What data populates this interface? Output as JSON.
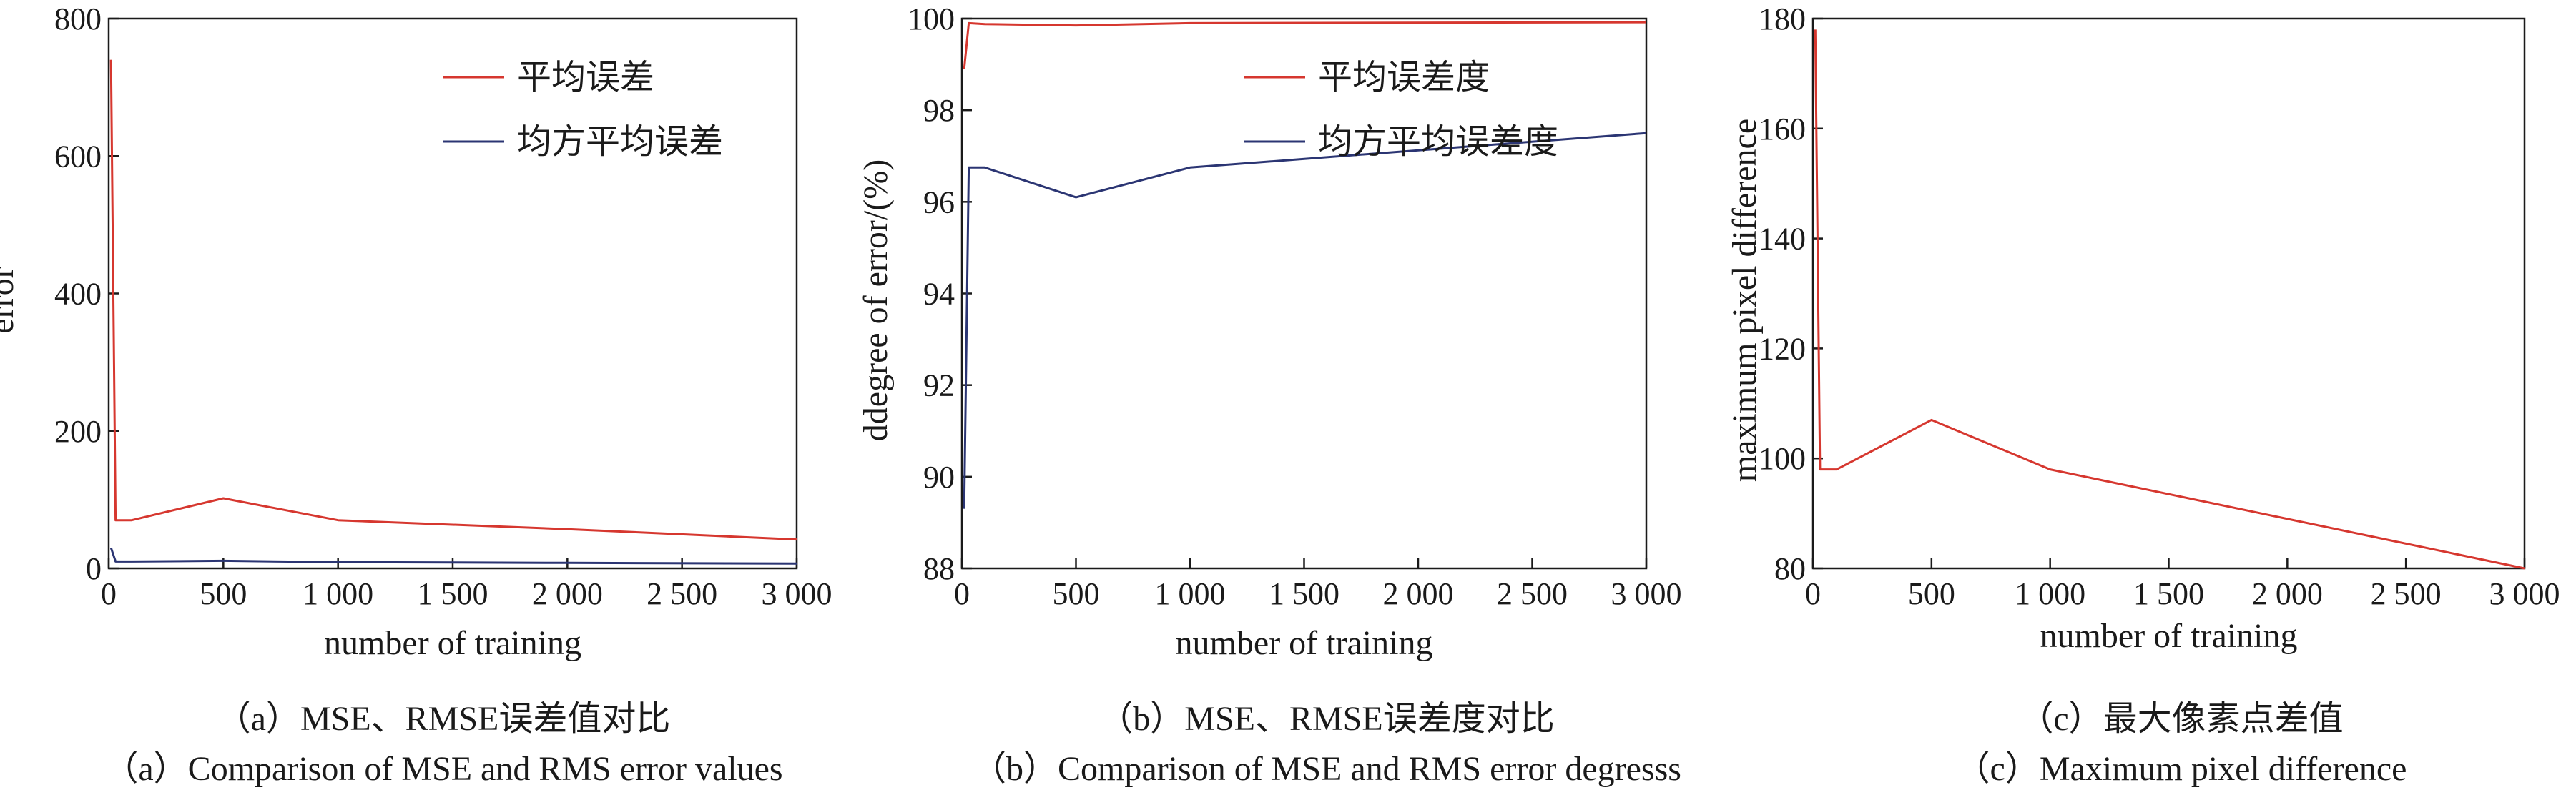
{
  "colors": {
    "red": "#d6372f",
    "blue": "#2b3573"
  },
  "charts": [
    {
      "type": "line",
      "xlabel": "number of training",
      "ylabel": "error",
      "xlim": [
        0,
        3000
      ],
      "ylim": [
        0,
        800
      ],
      "xticks": [
        "0",
        "500",
        "1 000",
        "1 500",
        "2 000",
        "2 500",
        "3 000"
      ],
      "xtick_values": [
        0,
        500,
        1000,
        1500,
        2000,
        2500,
        3000
      ],
      "yticks": [
        "0",
        "200",
        "400",
        "600",
        "800"
      ],
      "ytick_values": [
        0,
        200,
        400,
        600,
        800
      ],
      "legend_position": "top-right",
      "series": [
        {
          "name": "平均误差",
          "color": "#d6372f",
          "x": [
            10,
            30,
            100,
            500,
            1000,
            2000,
            3000
          ],
          "y": [
            740,
            70,
            70,
            102,
            70,
            57,
            42
          ]
        },
        {
          "name": "均方平均误差",
          "color": "#2b3573",
          "x": [
            10,
            30,
            100,
            500,
            1000,
            2000,
            3000
          ],
          "y": [
            30,
            10,
            10,
            11,
            9,
            8,
            7
          ]
        }
      ],
      "caption_cn": "（a）MSE、RMSE误差值对比",
      "caption_en": "（a）Comparison of MSE and RMS error values"
    },
    {
      "type": "line",
      "xlabel": "number of training",
      "ylabel": "ddegree of error/(%)",
      "xlim": [
        0,
        3000
      ],
      "ylim": [
        88,
        100
      ],
      "xticks": [
        "0",
        "500",
        "1 000",
        "1 500",
        "2 000",
        "2 500",
        "3 000"
      ],
      "xtick_values": [
        0,
        500,
        1000,
        1500,
        2000,
        2500,
        3000
      ],
      "yticks": [
        "88",
        "90",
        "92",
        "94",
        "96",
        "98",
        "100"
      ],
      "ytick_values": [
        88,
        90,
        92,
        94,
        96,
        98,
        100
      ],
      "legend_position": "top-right",
      "series": [
        {
          "name": "平均误差度",
          "color": "#d6372f",
          "x": [
            10,
            30,
            100,
            500,
            1000,
            3000
          ],
          "y": [
            98.9,
            99.9,
            99.88,
            99.85,
            99.9,
            99.92
          ]
        },
        {
          "name": "均方平均误差度",
          "color": "#2b3573",
          "x": [
            10,
            30,
            100,
            500,
            1000,
            3000
          ],
          "y": [
            89.3,
            96.75,
            96.75,
            96.1,
            96.75,
            97.5
          ]
        }
      ],
      "caption_cn": "（b）MSE、RMSE误差度对比",
      "caption_en": "（b）Comparison of MSE and RMS error degresss"
    },
    {
      "type": "line",
      "xlabel": "number of training",
      "ylabel": "maximum pixel difference",
      "xlim": [
        0,
        3000
      ],
      "ylim": [
        80,
        180
      ],
      "xticks": [
        "0",
        "500",
        "1 000",
        "1 500",
        "2 000",
        "2 500",
        "3 000"
      ],
      "xtick_values": [
        0,
        500,
        1000,
        1500,
        2000,
        2500,
        3000
      ],
      "yticks": [
        "80",
        "100",
        "120",
        "140",
        "160",
        "180"
      ],
      "ytick_values": [
        80,
        100,
        120,
        140,
        160,
        180
      ],
      "series": [
        {
          "color": "#d6372f",
          "x": [
            10,
            30,
            100,
            500,
            1000,
            3000
          ],
          "y": [
            178,
            98,
            98,
            107,
            98,
            80
          ]
        }
      ],
      "caption_cn": "（c）最大像素点差值",
      "caption_en": "（c）Maximum pixel difference"
    }
  ]
}
